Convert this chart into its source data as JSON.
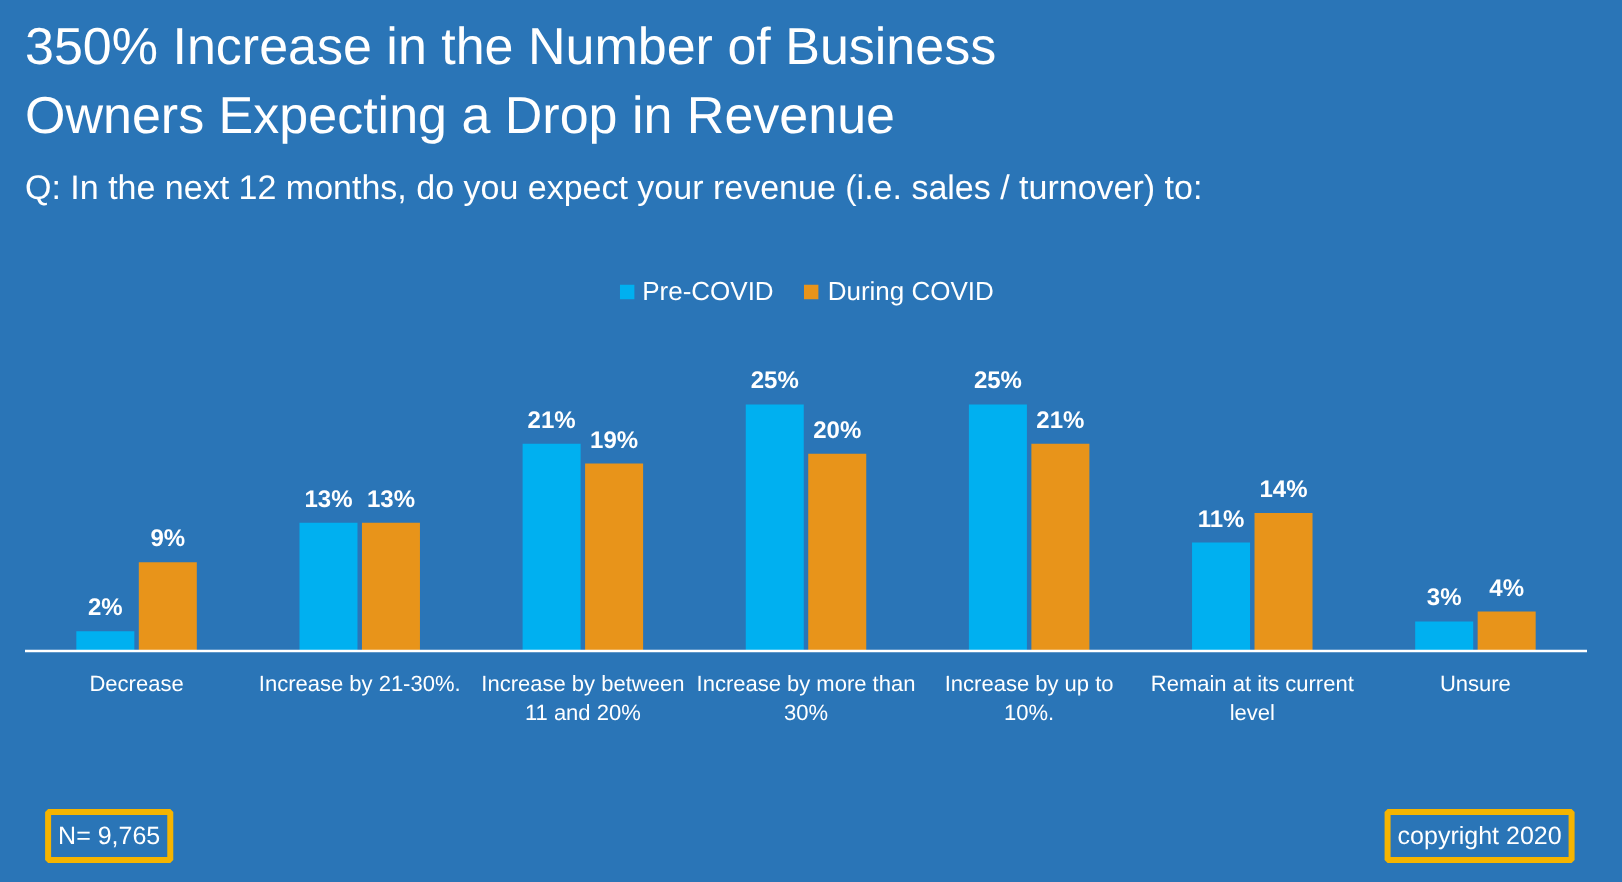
{
  "chart_data": {
    "type": "bar",
    "title": "350% Increase in the Number of Business Owners Expecting a Drop in Revenue",
    "subtitle": "Q: In the next 12 months, do you expect your revenue (i.e. sales / turnover) to:",
    "categories": [
      "Decrease",
      "Increase by 21-30%.",
      "Increase by between 11 and 20%",
      "Increase by more than 30%",
      "Increase by up to 10%.",
      "Remain at its current level",
      "Unsure"
    ],
    "series": [
      {
        "name": "Pre-COVID",
        "color": "#00b0f0",
        "values": [
          2,
          13,
          21,
          25,
          25,
          11,
          3
        ],
        "value_labels": [
          "2%",
          "13%",
          "21%",
          "25%",
          "25%",
          "11%",
          "3%"
        ]
      },
      {
        "name": "During COVID",
        "color": "#e8941a",
        "values": [
          9,
          13,
          19,
          20,
          21,
          14,
          4
        ],
        "value_labels": [
          "9%",
          "13%",
          "19%",
          "20%",
          "21%",
          "14%",
          "4%"
        ]
      }
    ],
    "legend": "top",
    "grid": false,
    "tick_labels": "x",
    "annotations": [
      "N= 9,765",
      "copyright 2020"
    ]
  }
}
